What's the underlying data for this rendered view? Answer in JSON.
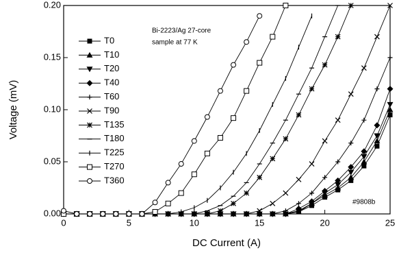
{
  "chart_data": {
    "type": "line",
    "annotations": [
      "Bi-2223/Ag 27-core",
      "sample at 77 K",
      "#9808b"
    ],
    "xlabel": "DC Current  (A)",
    "ylabel": "Voltage  (mV)",
    "x": [
      0,
      1,
      2,
      3,
      4,
      5,
      6,
      7,
      8,
      9,
      10,
      11,
      12,
      13,
      14,
      15,
      16,
      17,
      18,
      19,
      20,
      21,
      22,
      23,
      24,
      25
    ],
    "xlim": [
      0,
      25
    ],
    "xticks": [
      0,
      5,
      10,
      15,
      20,
      25
    ],
    "ylim": [
      0,
      0.2
    ],
    "yticks": [
      {
        "value": 0,
        "label": "0.00"
      },
      0.05,
      {
        "value": 0.1,
        "label": "0.10"
      },
      0.15,
      {
        "value": 0.2,
        "label": "0.20"
      }
    ],
    "legend": "upper-left",
    "series": [
      {
        "name": "T0",
        "color": "#000000",
        "marker": "square-filled",
        "values": [
          0,
          0,
          0,
          0,
          0,
          0,
          0,
          0,
          0,
          0,
          0,
          0,
          0,
          0,
          0,
          0,
          0,
          0,
          0.002,
          0.008,
          0.016,
          0.023,
          0.032,
          0.046,
          0.065,
          0.095
        ]
      },
      {
        "name": "T10",
        "color": "#000000",
        "marker": "triangle-up",
        "values": [
          0,
          0,
          0,
          0,
          0,
          0,
          0,
          0,
          0,
          0,
          0,
          0,
          0,
          0,
          0,
          0,
          0,
          0,
          0.002,
          0.01,
          0.018,
          0.025,
          0.035,
          0.05,
          0.07,
          0.1
        ]
      },
      {
        "name": "T20",
        "color": "#000000",
        "marker": "triangle-down",
        "values": [
          0,
          0,
          0,
          0,
          0,
          0,
          0,
          0,
          0,
          0,
          0,
          0,
          0,
          0,
          0,
          0,
          0,
          0,
          0.003,
          0.01,
          0.02,
          0.028,
          0.04,
          0.055,
          0.075,
          0.105
        ]
      },
      {
        "name": "T40",
        "color": "#000000",
        "marker": "diamond",
        "values": [
          0,
          0,
          0,
          0,
          0,
          0,
          0,
          0,
          0,
          0,
          0,
          0,
          0,
          0,
          0,
          0,
          0,
          0,
          0.005,
          0.012,
          0.022,
          0.032,
          0.045,
          0.06,
          0.085,
          0.12
        ]
      },
      {
        "name": "T60",
        "color": "#000000",
        "marker": "plus",
        "values": [
          0,
          0,
          0,
          0,
          0,
          0,
          0,
          0,
          0,
          0,
          0,
          0,
          0,
          0,
          0,
          0,
          0,
          0.003,
          0.01,
          0.02,
          0.035,
          0.05,
          0.068,
          0.09,
          0.12,
          0.15
        ]
      },
      {
        "name": "T90",
        "color": "#000000",
        "marker": "cross",
        "values": [
          0,
          0,
          0,
          0,
          0,
          0,
          0,
          0,
          0,
          0,
          0,
          0,
          0,
          0,
          0,
          0.003,
          0.01,
          0.02,
          0.033,
          0.048,
          0.07,
          0.09,
          0.115,
          0.14,
          0.17,
          0.2
        ]
      },
      {
        "name": "T135",
        "color": "#000000",
        "marker": "asterisk",
        "values": [
          0,
          0,
          0,
          0,
          0,
          0,
          0,
          0,
          0,
          0,
          0,
          0,
          0.003,
          0.01,
          0.02,
          0.035,
          0.053,
          0.072,
          0.095,
          0.12,
          0.143,
          0.17,
          0.2,
          null,
          null,
          null
        ]
      },
      {
        "name": "T180",
        "color": "#000000",
        "marker": "dash",
        "values": [
          0,
          0,
          0,
          0,
          0,
          0,
          0,
          0,
          0,
          0,
          0,
          0.003,
          0.008,
          0.017,
          0.03,
          0.048,
          0.068,
          0.09,
          0.115,
          0.14,
          0.17,
          0.2,
          null,
          null,
          null,
          null
        ]
      },
      {
        "name": "T225",
        "color": "#000000",
        "marker": "tick",
        "values": [
          0,
          0,
          0,
          0,
          0,
          0,
          0,
          0,
          0,
          0.002,
          0.006,
          0.013,
          0.025,
          0.04,
          0.058,
          0.08,
          0.105,
          0.13,
          0.16,
          0.19,
          null,
          null,
          null,
          null,
          null,
          null
        ]
      },
      {
        "name": "T270",
        "color": "#000000",
        "marker": "square-open",
        "values": [
          0,
          0,
          0,
          0,
          0,
          0,
          0,
          0.002,
          0.01,
          0.02,
          0.038,
          0.058,
          0.073,
          0.092,
          0.118,
          0.145,
          0.17,
          0.2,
          null,
          null,
          null,
          null,
          null,
          null,
          null,
          null
        ]
      },
      {
        "name": "T360",
        "color": "#000000",
        "marker": "circle-open",
        "values": [
          0.003,
          0,
          0,
          0,
          0,
          0,
          0,
          0.011,
          0.03,
          0.048,
          0.07,
          0.093,
          0.118,
          0.143,
          0.165,
          0.19,
          null,
          null,
          null,
          null,
          null,
          null,
          null,
          null,
          null,
          null
        ]
      }
    ]
  }
}
